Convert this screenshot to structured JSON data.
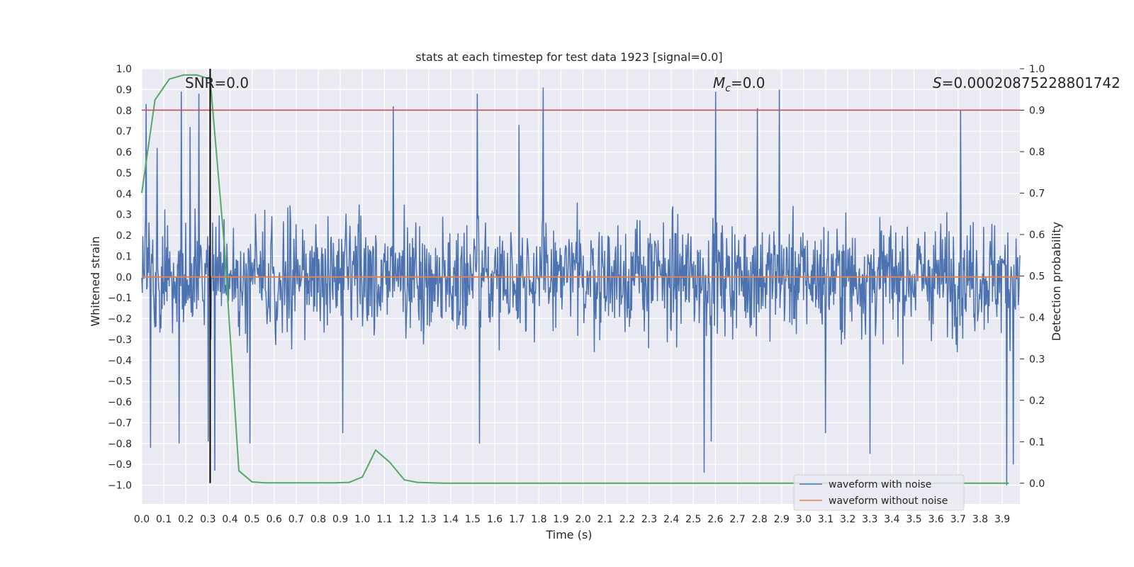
{
  "chart_data": {
    "type": "line",
    "title": "stats at each timestep for test data 1923 [signal=0.0]",
    "xlabel": "Time (s)",
    "ylabel": "Whitened strain",
    "ylabel_right": "Detection probability",
    "xlim": [
      0.0,
      3.98
    ],
    "ylim": [
      -1.09,
      1.0
    ],
    "ylim_right": [
      -0.05,
      1.0
    ],
    "x_ticks": [
      "0.0",
      "0.1",
      "0.2",
      "0.3",
      "0.4",
      "0.5",
      "0.6",
      "0.7",
      "0.8",
      "0.9",
      "1.0",
      "1.1",
      "1.2",
      "1.3",
      "1.4",
      "1.5",
      "1.6",
      "1.7",
      "1.8",
      "1.9",
      "2.0",
      "2.1",
      "2.2",
      "2.3",
      "2.4",
      "2.5",
      "2.6",
      "2.7",
      "2.8",
      "2.9",
      "3.0",
      "3.1",
      "3.2",
      "3.3",
      "3.4",
      "3.5",
      "3.6",
      "3.7",
      "3.8",
      "3.9"
    ],
    "y_ticks": [
      "1.0",
      "0.9",
      "0.8",
      "0.7",
      "0.6",
      "0.5",
      "0.4",
      "0.3",
      "0.2",
      "0.1",
      "0.0",
      "−0.1",
      "−0.2",
      "−0.3",
      "−0.4",
      "−0.5",
      "−0.6",
      "−0.7",
      "−0.8",
      "−0.9",
      "−1.0"
    ],
    "y_right_ticks": [
      "1.0",
      "0.9",
      "0.8",
      "0.7",
      "0.6",
      "0.5",
      "0.4",
      "0.3",
      "0.2",
      "0.1",
      "0.0"
    ],
    "grid": true,
    "legend_position": "lower-right",
    "annotations": {
      "snr": "SNR=0.0",
      "mc_base": "M",
      "mc_sub": "c",
      "mc_rest": "=0.0",
      "s_base": "S",
      "s_rest": "=0.00020875228801742"
    },
    "threshold_right": 0.9,
    "marker_time": 0.31,
    "series": [
      {
        "name": "waveform with noise",
        "axis": "left",
        "color": "#4c72b0",
        "amplitude_typical": 0.25,
        "amplitude_max": 0.9,
        "amplitude_min": -1.0,
        "peaks": [
          {
            "x": 0.02,
            "y": 0.83
          },
          {
            "x": 0.07,
            "y": 0.62
          },
          {
            "x": 0.18,
            "y": 0.89
          },
          {
            "x": 0.22,
            "y": 0.72
          },
          {
            "x": 0.26,
            "y": 0.88
          },
          {
            "x": 1.14,
            "y": 0.82
          },
          {
            "x": 1.52,
            "y": 0.88
          },
          {
            "x": 1.71,
            "y": 0.73
          },
          {
            "x": 1.82,
            "y": 0.91
          },
          {
            "x": 2.6,
            "y": 0.89
          },
          {
            "x": 2.79,
            "y": 0.81
          },
          {
            "x": 2.89,
            "y": 0.9
          },
          {
            "x": 3.71,
            "y": 0.8
          },
          {
            "x": 0.04,
            "y": -0.82
          },
          {
            "x": 0.17,
            "y": -0.8
          },
          {
            "x": 0.3,
            "y": -0.79
          },
          {
            "x": 0.33,
            "y": -0.93
          },
          {
            "x": 0.49,
            "y": -0.8
          },
          {
            "x": 0.91,
            "y": -0.75
          },
          {
            "x": 1.53,
            "y": -0.8
          },
          {
            "x": 2.55,
            "y": -0.94
          },
          {
            "x": 2.58,
            "y": -0.79
          },
          {
            "x": 3.1,
            "y": -0.75
          },
          {
            "x": 3.3,
            "y": -0.85
          },
          {
            "x": 3.92,
            "y": -1.0
          },
          {
            "x": 3.95,
            "y": -0.9
          }
        ]
      },
      {
        "name": "waveform without noise",
        "axis": "left",
        "color": "#dd8452",
        "x": [
          0.0,
          3.98
        ],
        "y": [
          0.0,
          0.0
        ]
      },
      {
        "axis": "right",
        "color": "#55a868",
        "x": [
          0.0,
          0.06,
          0.125,
          0.19,
          0.25,
          0.31,
          0.375,
          0.44,
          0.5,
          0.56,
          0.625,
          0.69,
          0.75,
          0.81,
          0.875,
          0.94,
          1.0,
          1.06,
          1.125,
          1.19,
          1.25,
          1.31,
          1.375,
          1.5,
          2.0,
          2.5,
          3.0,
          3.5,
          3.93
        ],
        "y": [
          0.7,
          0.925,
          0.975,
          0.985,
          0.985,
          0.975,
          0.57,
          0.03,
          0.003,
          0.001,
          0.001,
          0.001,
          0.001,
          0.001,
          0.001,
          0.002,
          0.015,
          0.08,
          0.05,
          0.008,
          0.002,
          0.001,
          0.0,
          0.0,
          0.0,
          0.0,
          0.0,
          0.0,
          0.0
        ]
      }
    ]
  }
}
